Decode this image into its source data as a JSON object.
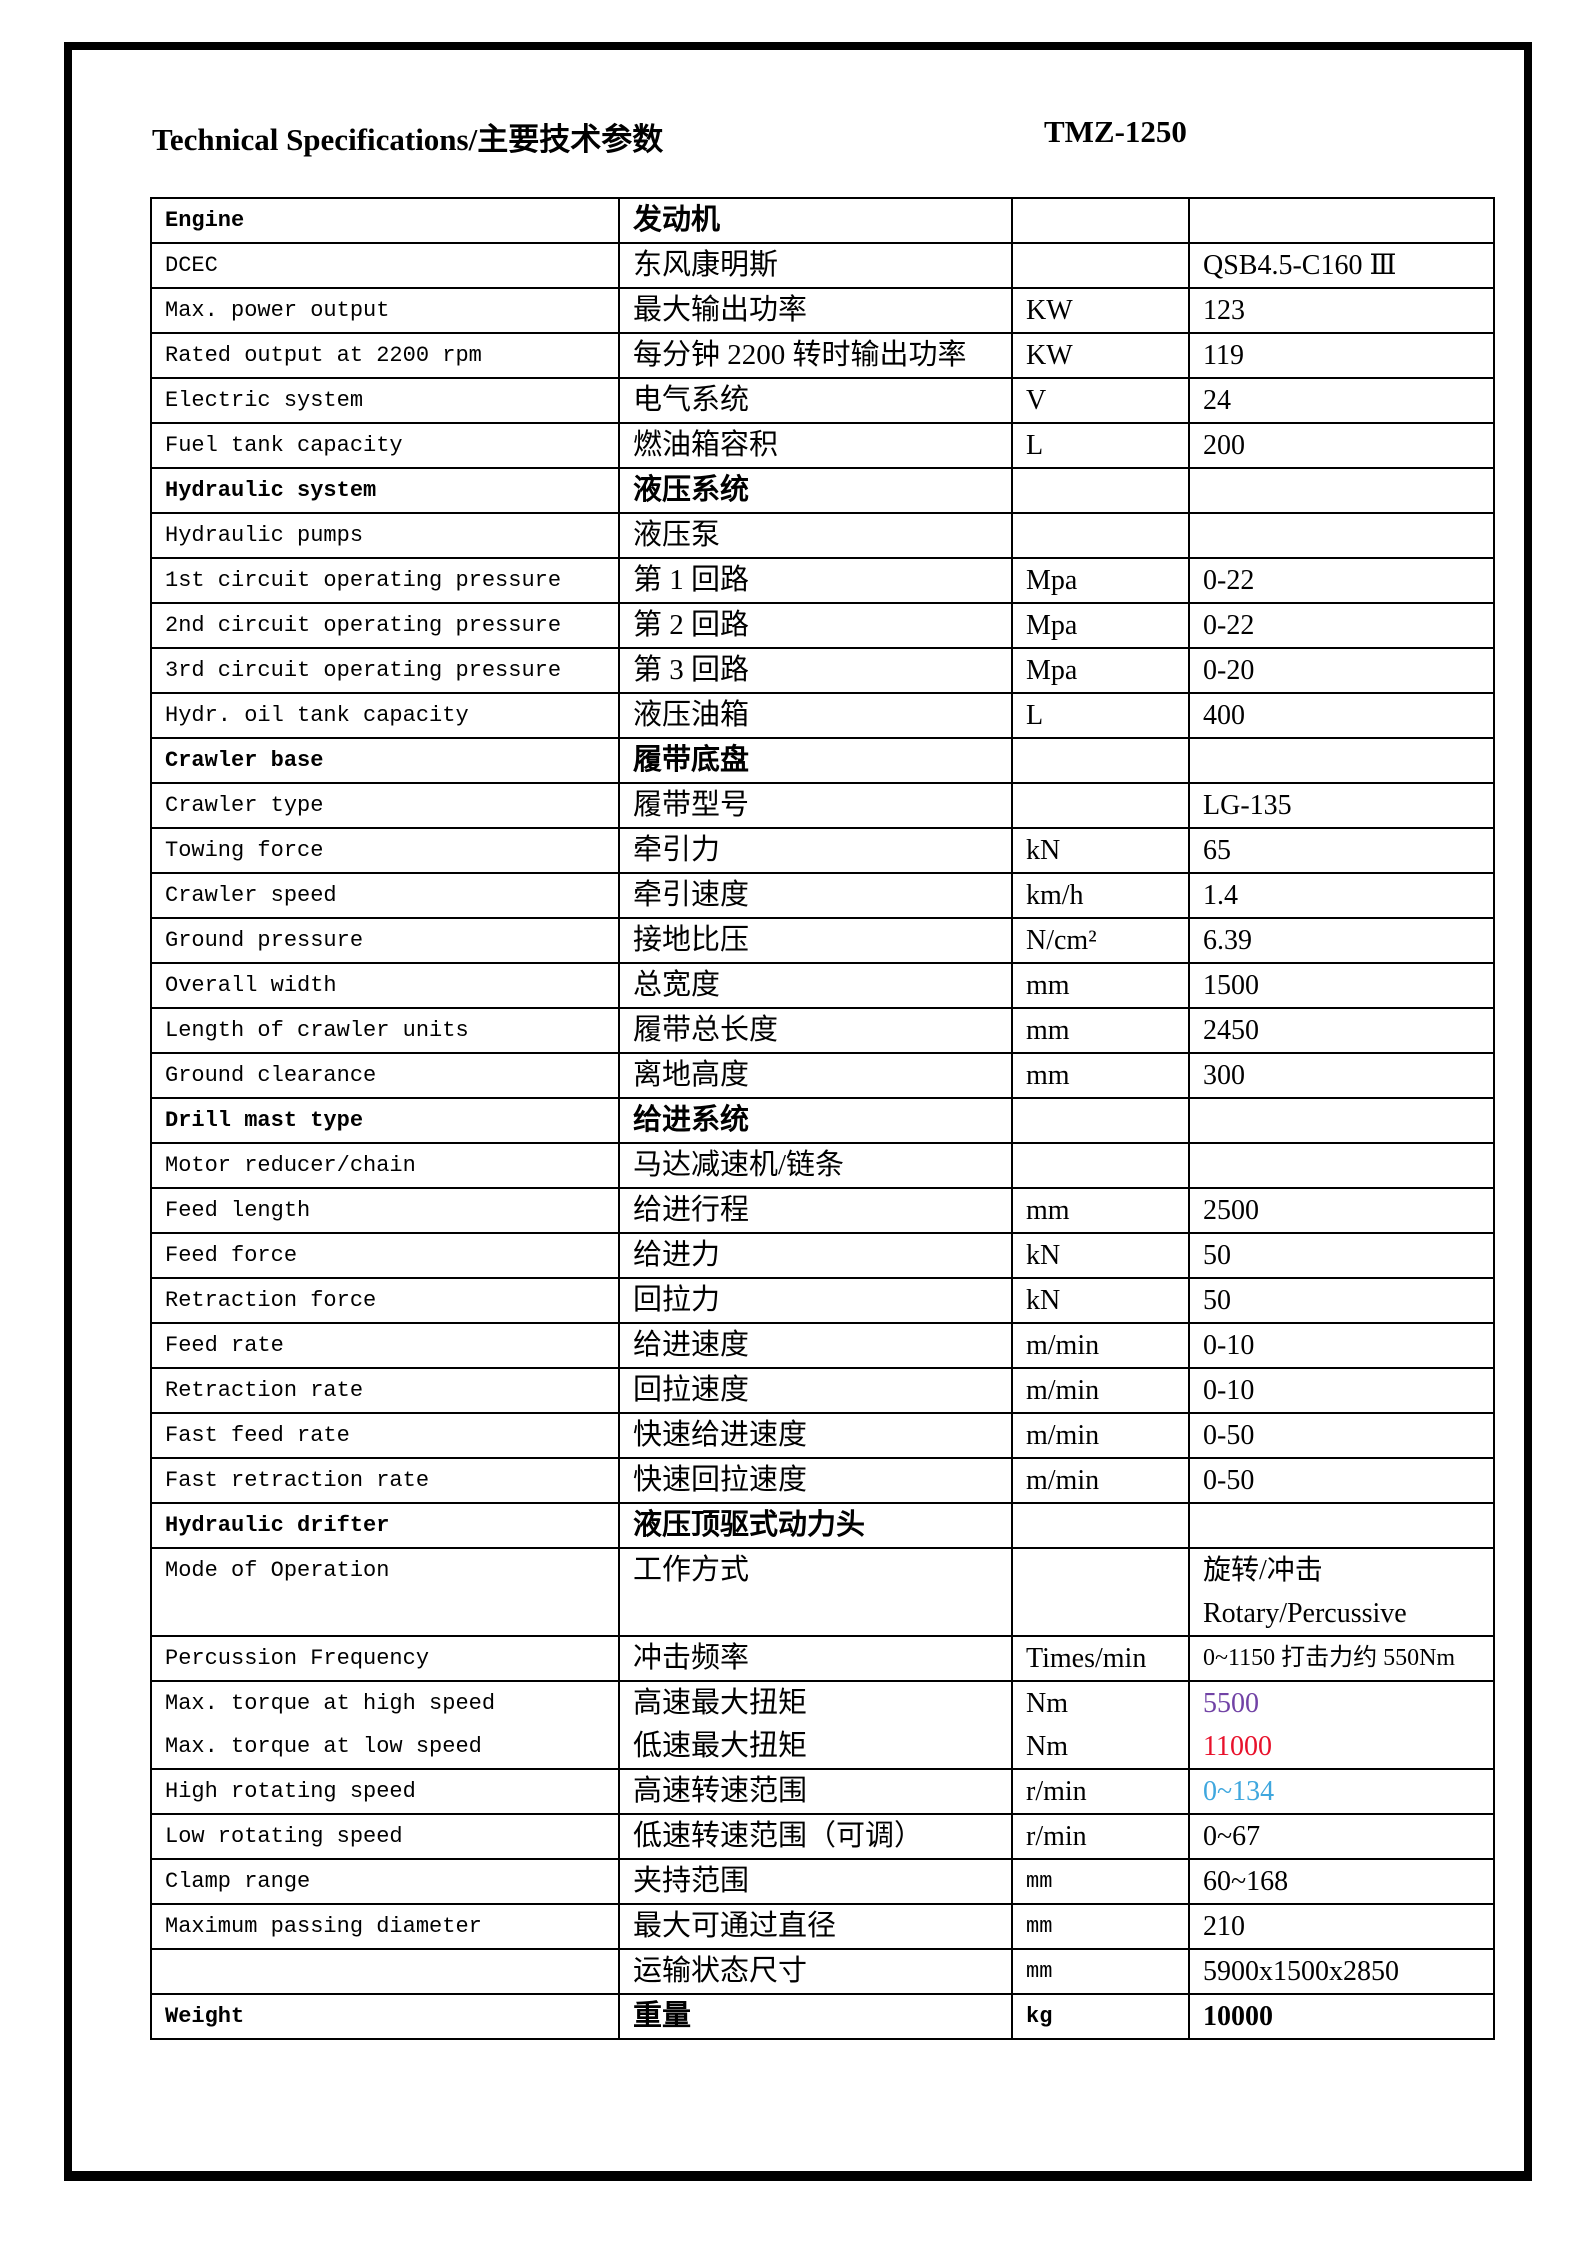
{
  "page": {
    "title_left": "Technical Specifications/主要技术参数",
    "title_right": "TMZ-1250"
  },
  "colors": {
    "torque_high_purple": "#7142A5",
    "torque_low_red": "#E8112B",
    "high_speed_blue": "#3FA7DE"
  },
  "table": {
    "rows": [
      {
        "en": "Engine",
        "cn": "发动机",
        "unit": "",
        "value": "",
        "bold": true
      },
      {
        "en": "DCEC",
        "cn": "东风康明斯",
        "unit": "",
        "value": "QSB4.5-C160 Ⅲ"
      },
      {
        "en": "Max. power output",
        "cn": "最大输出功率",
        "unit": "KW",
        "value": "123"
      },
      {
        "en": "Rated output at 2200 rpm",
        "cn": "每分钟 2200 转时输出功率",
        "unit": "KW",
        "value": "119"
      },
      {
        "en": "Electric system",
        "cn": "电气系统",
        "unit": "V",
        "value": "24"
      },
      {
        "en": "Fuel tank capacity",
        "cn": "燃油箱容积",
        "unit": "L",
        "value": "200"
      },
      {
        "en": "Hydraulic system",
        "cn": "液压系统",
        "unit": "",
        "value": "",
        "bold": true
      },
      {
        "en": "Hydraulic pumps",
        "cn": "液压泵",
        "unit": "",
        "value": ""
      },
      {
        "en": "1st circuit operating pressure",
        "cn": "第 1 回路",
        "unit": "Mpa",
        "value": "0-22"
      },
      {
        "en": "2nd circuit operating pressure",
        "cn": "第 2 回路",
        "unit": "Mpa",
        "value": "0-22"
      },
      {
        "en": "3rd circuit operating pressure",
        "cn": "第 3 回路",
        "unit": "Mpa",
        "value": "0-20"
      },
      {
        "en": "Hydr. oil tank capacity",
        "cn": "液压油箱",
        "unit": "L",
        "value": "400"
      },
      {
        "en": "Crawler base",
        "cn": "履带底盘",
        "unit": "",
        "value": "",
        "bold": true
      },
      {
        "en": "Crawler type",
        "cn": "履带型号",
        "unit": "",
        "value": "LG-135"
      },
      {
        "en": "Towing force",
        "cn": "牵引力",
        "unit": "kN",
        "value": "65"
      },
      {
        "en": "Crawler speed",
        "cn": "牵引速度",
        "unit": "km/h",
        "value": "1.4"
      },
      {
        "en": "Ground pressure",
        "cn": "接地比压",
        "unit": "N/cm²",
        "value": "6.39"
      },
      {
        "en": "Overall width",
        "cn": "总宽度",
        "unit": "mm",
        "value": "1500"
      },
      {
        "en": "Length of crawler units",
        "cn": "履带总长度",
        "unit": "mm",
        "value": "2450"
      },
      {
        "en": "Ground clearance",
        "cn": "离地高度",
        "unit": "mm",
        "value": "300"
      },
      {
        "en": "Drill mast type",
        "cn": "给进系统",
        "unit": "",
        "value": "",
        "bold": true
      },
      {
        "en": "Motor reducer/chain",
        "cn": "马达减速机/链条",
        "unit": "",
        "value": ""
      },
      {
        "en": "Feed length",
        "cn": "给进行程",
        "unit": "mm",
        "value": "2500"
      },
      {
        "en": "Feed force",
        "cn": "给进力",
        "unit": "kN",
        "value": "50"
      },
      {
        "en": "Retraction force",
        "cn": "回拉力",
        "unit": "kN",
        "value": "50"
      },
      {
        "en": "Feed rate",
        "cn": "给进速度",
        "unit": "m/min",
        "value": "0-10"
      },
      {
        "en": "Retraction rate",
        "cn": "回拉速度",
        "unit": "m/min",
        "value": "0-10"
      },
      {
        "en": "Fast feed rate",
        "cn": "快速给进速度",
        "unit": "m/min",
        "value": "0-50"
      },
      {
        "en": "Fast retraction rate",
        "cn": "快速回拉速度",
        "unit": "m/min",
        "value": "0-50"
      },
      {
        "en": "Hydraulic drifter",
        "cn": "液压顶驱式动力头",
        "unit": "",
        "value": "",
        "bold": true
      },
      {
        "en": "Mode of Operation",
        "cn": "工作方式",
        "unit": "",
        "value": [
          "旋转/冲击",
          "Rotary/Percussive"
        ]
      },
      {
        "en": "Percussion Frequency",
        "cn": "冲击频率",
        "unit": "Times/min",
        "value": "0~1150 打击力约 550Nm",
        "value_small": true
      },
      {
        "en": [
          "Max. torque at high speed",
          "Max. torque at low speed"
        ],
        "cn": [
          "高速最大扭矩",
          "低速最大扭矩"
        ],
        "unit": [
          "Nm",
          "Nm"
        ],
        "value": [
          "5500",
          "11000"
        ],
        "value_colors": [
          "#7142A5",
          "#E8112B"
        ]
      },
      {
        "en": "High rotating speed",
        "cn": "高速转速范围",
        "unit": "r/min",
        "value": "0~134",
        "value_colors": [
          "#3FA7DE"
        ]
      },
      {
        "en": "Low rotating speed",
        "cn": "低速转速范围（可调）",
        "unit": "r/min",
        "value": "0~67"
      },
      {
        "en": "Clamp range",
        "cn": "夹持范围",
        "unit": "mm",
        "value": "60~168",
        "unit_cn": true
      },
      {
        "en": "Maximum passing diameter",
        "cn": "最大可通过直径",
        "unit": "mm",
        "value": "210",
        "unit_cn": true
      },
      {
        "en": "",
        "cn": "运输状态尺寸",
        "unit": "mm",
        "value": "5900x1500x2850",
        "unit_cn": true
      },
      {
        "en": "Weight",
        "cn": "重量",
        "unit": "kg",
        "value": "10000",
        "bold": true,
        "unit_cn": true
      }
    ]
  }
}
